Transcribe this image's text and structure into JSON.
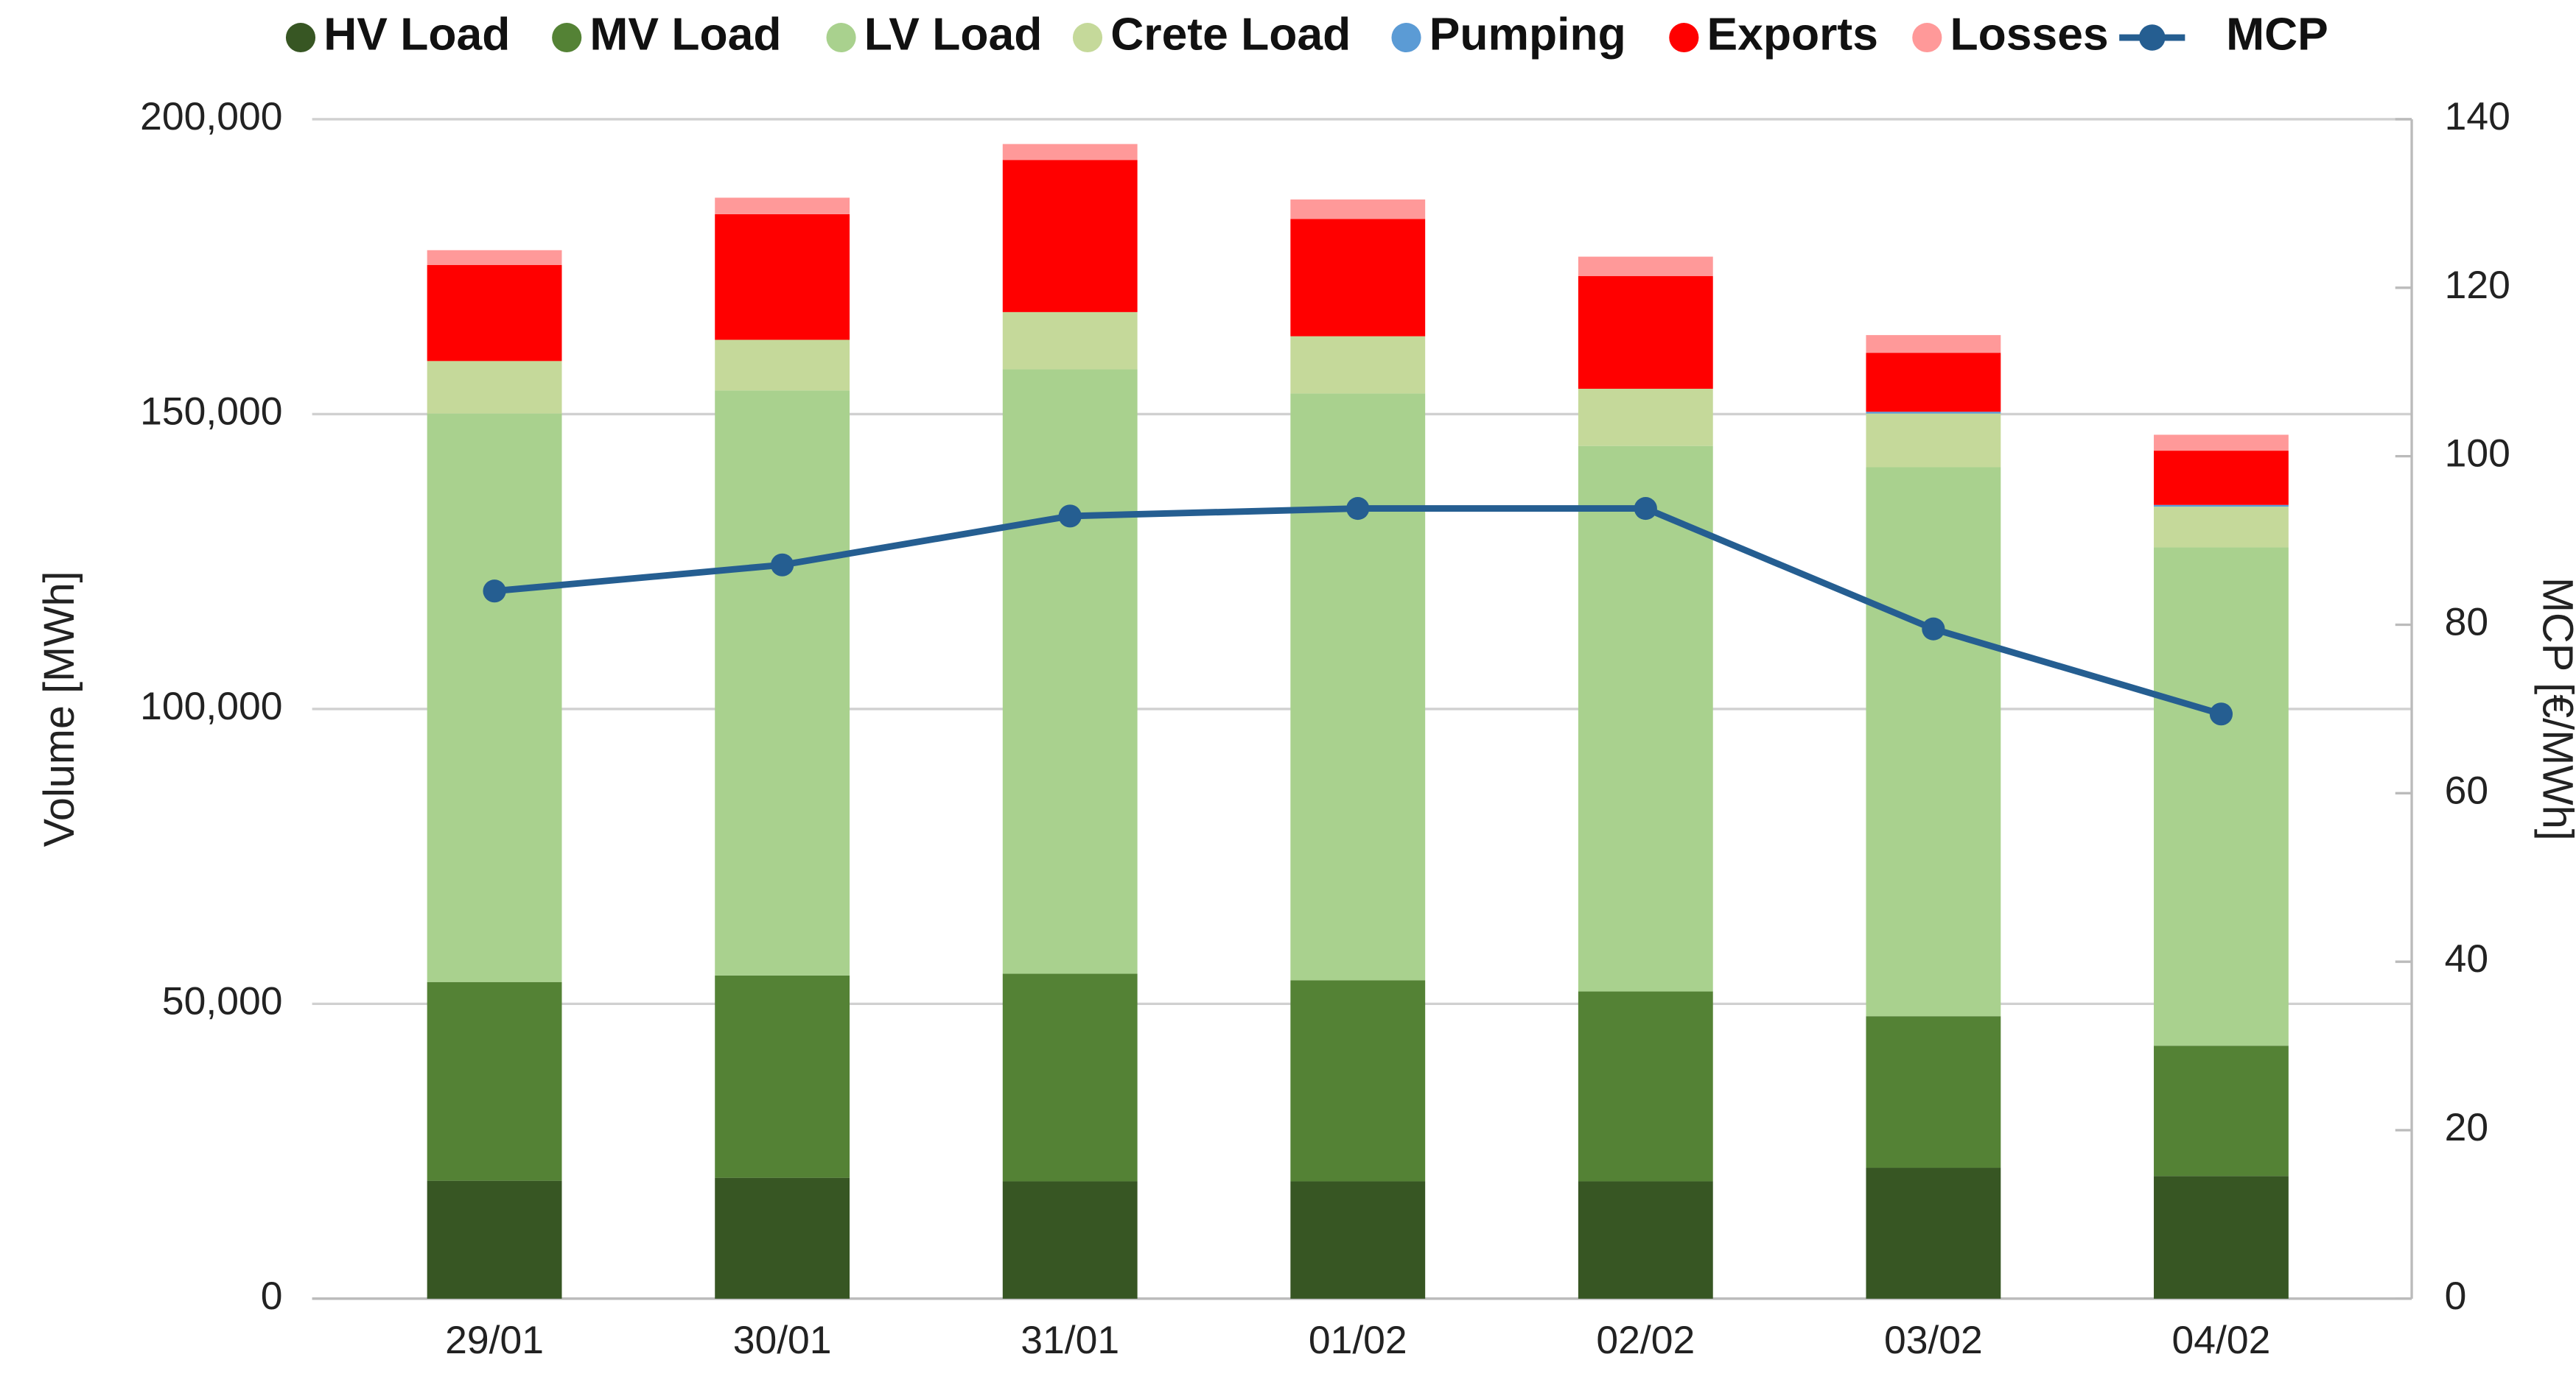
{
  "chart_data": {
    "type": "bar",
    "stacked": true,
    "categories": [
      "29/01",
      "30/01",
      "31/01",
      "01/02",
      "02/02",
      "03/02",
      "04/02"
    ],
    "ylabel": "Volume [MWh]",
    "y2label": "MCP [€/MWh]",
    "ylim": [
      0,
      200000
    ],
    "yticks": [
      0,
      {
        "value": 50000,
        "label": "50,000"
      },
      {
        "value": 100000,
        "label": "100,000"
      },
      {
        "value": 150000,
        "label": "150,000"
      },
      {
        "value": 200000,
        "label": "200,000"
      }
    ],
    "y2lim": [
      0,
      140
    ],
    "y2ticks": [
      0,
      20,
      40,
      60,
      80,
      100,
      120,
      140
    ],
    "grid": true,
    "legend": "top",
    "series": [
      {
        "name": "HV Load",
        "color": "#375623",
        "values": [
          20000,
          20500,
          19900,
          19900,
          19900,
          22200,
          20800
        ]
      },
      {
        "name": "MV Load",
        "color": "#548235",
        "values": [
          33700,
          34300,
          35200,
          34100,
          32200,
          25700,
          22100
        ]
      },
      {
        "name": "LV Load",
        "color": "#a9d18e",
        "values": [
          96400,
          99200,
          102500,
          99500,
          92500,
          93100,
          84500
        ]
      },
      {
        "name": "Crete Load",
        "color": "#c5d99a",
        "values": [
          8900,
          8600,
          9700,
          9700,
          9700,
          9100,
          6900
        ]
      },
      {
        "name": "Pumping",
        "color": "#5b9bd5",
        "values": [
          0,
          0,
          0,
          0,
          0,
          300,
          300
        ]
      },
      {
        "name": "Exports",
        "color": "#ff0000",
        "values": [
          16300,
          21300,
          25800,
          19900,
          19100,
          10000,
          9200
        ]
      },
      {
        "name": "Losses",
        "color": "#ff9999",
        "values": [
          2500,
          2800,
          2700,
          3300,
          3300,
          3000,
          2700
        ]
      },
      {
        "name": "MCP",
        "color": "#255e91",
        "type": "line",
        "axis": "y2",
        "values": [
          84.0,
          87.1,
          92.9,
          93.8,
          93.8,
          79.5,
          69.4
        ]
      }
    ]
  }
}
